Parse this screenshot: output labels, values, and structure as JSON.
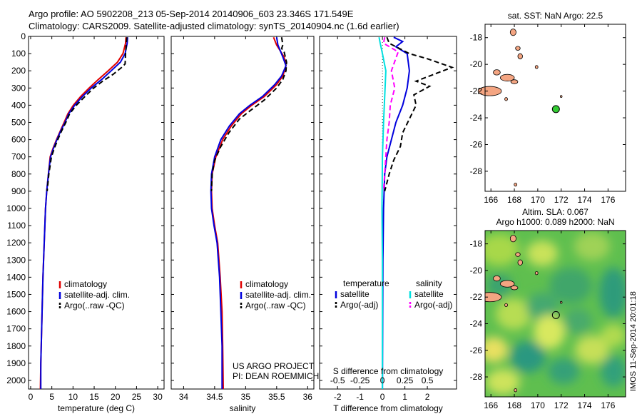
{
  "header": {
    "line1": "Argo profile: AO 5902208_213 05-Sep-2014 20140906_603 23.346S 171.549E",
    "line2": "Climatology: CARS2009. Satellite-adjusted climatology: synTS_20140904.nc (1.6d earlier)"
  },
  "credit": {
    "line1": "US ARGO PROJECT",
    "line2": "PI: DEAN ROEMMICH"
  },
  "side_label": "IMOS 11-Sep-2014 20:01:18",
  "colors": {
    "climatology": "#e00000",
    "satellite": "#0000dd",
    "argo": "#000000",
    "sal_satellite": "#00e0e0",
    "sal_argo": "#ff00ff",
    "float": "#33cc33",
    "land": "#f4a582"
  },
  "chart_data": [
    {
      "id": "temperature",
      "type": "line",
      "xlabel": "temperature (deg C)",
      "xlim": [
        -0.5,
        31.5
      ],
      "ylim": [
        2050,
        0
      ],
      "xticks": [
        0,
        5,
        10,
        15,
        20,
        25,
        30
      ],
      "yticks": [
        0,
        100,
        200,
        300,
        400,
        500,
        600,
        700,
        800,
        900,
        1000,
        1100,
        1200,
        1300,
        1400,
        1500,
        1600,
        1700,
        1800,
        1900,
        2000
      ],
      "legend": [
        "climatology",
        "satellite-adj. clim.",
        "Argo(..raw -QC)"
      ],
      "series": [
        {
          "name": "climatology",
          "style": "climatology",
          "points": [
            [
              22.5,
              5
            ],
            [
              22.4,
              40
            ],
            [
              21.8,
              100
            ],
            [
              20.5,
              150
            ],
            [
              18.3,
              200
            ],
            [
              16,
              250
            ],
            [
              13.8,
              300
            ],
            [
              11.8,
              350
            ],
            [
              10.1,
              400
            ],
            [
              8.8,
              450
            ],
            [
              7.9,
              500
            ],
            [
              7.0,
              550
            ],
            [
              6.1,
              600
            ],
            [
              5.3,
              650
            ],
            [
              4.6,
              700
            ],
            [
              4.2,
              800
            ],
            [
              3.8,
              900
            ],
            [
              3.5,
              1000
            ],
            [
              3.2,
              1200
            ],
            [
              2.9,
              1400
            ],
            [
              2.7,
              1600
            ],
            [
              2.5,
              1800
            ],
            [
              2.4,
              1900
            ],
            [
              2.3,
              2050
            ]
          ]
        },
        {
          "name": "satellite-adj. clim.",
          "style": "satellite",
          "points": [
            [
              22.9,
              5
            ],
            [
              22.8,
              40
            ],
            [
              22.3,
              100
            ],
            [
              21.2,
              150
            ],
            [
              19,
              200
            ],
            [
              16.8,
              250
            ],
            [
              14.3,
              300
            ],
            [
              12.2,
              350
            ],
            [
              10.4,
              400
            ],
            [
              9.0,
              450
            ],
            [
              8.1,
              500
            ],
            [
              7.1,
              550
            ],
            [
              6.2,
              600
            ],
            [
              5.4,
              650
            ],
            [
              4.7,
              700
            ],
            [
              4.2,
              800
            ],
            [
              3.8,
              900
            ],
            [
              3.5,
              1000
            ],
            [
              3.2,
              1200
            ],
            [
              2.9,
              1400
            ],
            [
              2.7,
              1600
            ],
            [
              2.5,
              1800
            ],
            [
              2.4,
              1900
            ],
            [
              2.4,
              2050
            ]
          ]
        },
        {
          "name": "Argo(..raw -QC)",
          "style": "argo",
          "dashed": true,
          "points": [
            [
              22.7,
              5
            ],
            [
              22.6,
              40
            ],
            [
              22.4,
              100
            ],
            [
              22.3,
              160
            ],
            [
              21.5,
              180
            ],
            [
              19.5,
              220
            ],
            [
              17.0,
              260
            ],
            [
              14.9,
              300
            ],
            [
              12.8,
              350
            ],
            [
              10.8,
              400
            ],
            [
              9.2,
              450
            ],
            [
              8.3,
              500
            ],
            [
              7.3,
              550
            ],
            [
              6.4,
              600
            ],
            [
              5.6,
              650
            ],
            [
              4.9,
              700
            ],
            [
              4.3,
              800
            ],
            [
              3.9,
              900
            ]
          ]
        }
      ]
    },
    {
      "id": "salinity",
      "type": "line",
      "xlabel": "salinity",
      "xlim": [
        33.8,
        36.1
      ],
      "ylim": [
        2050,
        0
      ],
      "xticks": [
        34,
        34.5,
        35,
        35.5,
        36
      ],
      "legend": [
        "climatology",
        "satellite-adj. clim.",
        "Argo(..raw -QC)"
      ],
      "series": [
        {
          "name": "climatology",
          "style": "climatology",
          "points": [
            [
              35.45,
              5
            ],
            [
              35.5,
              50
            ],
            [
              35.62,
              120
            ],
            [
              35.65,
              170
            ],
            [
              35.6,
              230
            ],
            [
              35.5,
              280
            ],
            [
              35.3,
              350
            ],
            [
              35.1,
              400
            ],
            [
              34.93,
              450
            ],
            [
              34.77,
              520
            ],
            [
              34.63,
              600
            ],
            [
              34.52,
              700
            ],
            [
              34.46,
              800
            ],
            [
              34.45,
              900
            ],
            [
              34.46,
              1000
            ],
            [
              34.5,
              1100
            ],
            [
              34.55,
              1200
            ],
            [
              34.59,
              1400
            ],
            [
              34.62,
              1600
            ],
            [
              34.63,
              1800
            ],
            [
              34.64,
              2050
            ]
          ]
        },
        {
          "name": "satellite-adj. clim.",
          "style": "satellite",
          "points": [
            [
              35.5,
              5
            ],
            [
              35.52,
              50
            ],
            [
              35.6,
              120
            ],
            [
              35.65,
              170
            ],
            [
              35.58,
              230
            ],
            [
              35.47,
              280
            ],
            [
              35.27,
              350
            ],
            [
              35.07,
              400
            ],
            [
              34.9,
              450
            ],
            [
              34.74,
              520
            ],
            [
              34.6,
              600
            ],
            [
              34.5,
              700
            ],
            [
              34.45,
              800
            ],
            [
              34.44,
              900
            ],
            [
              34.45,
              1000
            ],
            [
              34.49,
              1100
            ],
            [
              34.54,
              1200
            ],
            [
              34.58,
              1400
            ],
            [
              34.6,
              1600
            ],
            [
              34.62,
              1800
            ],
            [
              34.62,
              2050
            ]
          ]
        },
        {
          "name": "Argo(..raw -QC)",
          "style": "argo",
          "dashed": true,
          "points": [
            [
              35.58,
              5
            ],
            [
              35.6,
              50
            ],
            [
              35.58,
              70
            ],
            [
              35.62,
              90
            ],
            [
              35.66,
              150
            ],
            [
              35.65,
              200
            ],
            [
              35.6,
              250
            ],
            [
              35.5,
              300
            ],
            [
              35.3,
              370
            ],
            [
              35.08,
              430
            ],
            [
              34.9,
              480
            ],
            [
              34.73,
              560
            ],
            [
              34.6,
              640
            ],
            [
              34.5,
              720
            ],
            [
              34.46,
              800
            ],
            [
              34.45,
              900
            ]
          ]
        }
      ]
    },
    {
      "id": "differences",
      "type": "line",
      "xlabel": "T difference from climatology",
      "xlabel_top": "S difference from climatology",
      "xlim": [
        -2.8,
        3.3
      ],
      "ylim": [
        2050,
        0
      ],
      "xticks": [
        -2,
        -1,
        0,
        1,
        2
      ],
      "xticks_top": [
        "-0.5",
        "-0.25",
        "0",
        "0.25",
        "0.5"
      ],
      "legend_headings": [
        "temperature",
        "salinity"
      ],
      "legend": [
        "satellite",
        "Argo(-adj)",
        "satellite",
        "Argo(-adj)"
      ],
      "series": [
        {
          "name": "satellite",
          "group": "temperature",
          "style": "satellite",
          "points": [
            [
              0.5,
              5
            ],
            [
              0.9,
              30
            ],
            [
              0.6,
              60
            ],
            [
              1.1,
              100
            ],
            [
              1.2,
              200
            ],
            [
              1.1,
              300
            ],
            [
              0.9,
              400
            ],
            [
              0.6,
              500
            ],
            [
              0.4,
              600
            ],
            [
              0.2,
              700
            ],
            [
              0.1,
              800
            ],
            [
              0.05,
              1000
            ],
            [
              0.02,
              1300
            ],
            [
              0.0,
              2050
            ]
          ]
        },
        {
          "name": "Argo(-adj)",
          "group": "temperature",
          "style": "argo",
          "dashed": true,
          "points": [
            [
              0.2,
              5
            ],
            [
              0.3,
              40
            ],
            [
              1.2,
              100
            ],
            [
              2.0,
              130
            ],
            [
              3.1,
              180
            ],
            [
              1.5,
              260
            ],
            [
              2.1,
              290
            ],
            [
              1.4,
              340
            ],
            [
              1.5,
              400
            ],
            [
              1.2,
              480
            ],
            [
              0.9,
              560
            ],
            [
              0.8,
              640
            ],
            [
              0.5,
              720
            ],
            [
              0.3,
              800
            ],
            [
              0.1,
              900
            ]
          ]
        },
        {
          "name": "satellite",
          "group": "salinity",
          "style": "sal_satellite",
          "points": [
            [
              -0.15,
              5
            ],
            [
              -0.1,
              40
            ],
            [
              0.0,
              100
            ],
            [
              0.15,
              200
            ],
            [
              0.1,
              350
            ],
            [
              0.05,
              500
            ],
            [
              0.0,
              700
            ],
            [
              -0.02,
              1000
            ],
            [
              0.0,
              1300
            ],
            [
              0.0,
              2050
            ]
          ]
        },
        {
          "name": "Argo(-adj)",
          "group": "salinity",
          "style": "sal_argo",
          "dashed": true,
          "points": [
            [
              0.1,
              5
            ],
            [
              0.05,
              40
            ],
            [
              0.7,
              90
            ],
            [
              0.4,
              200
            ],
            [
              0.55,
              300
            ],
            [
              0.35,
              400
            ],
            [
              0.3,
              500
            ],
            [
              0.2,
              600
            ],
            [
              0.1,
              800
            ],
            [
              0.05,
              900
            ]
          ]
        }
      ]
    },
    {
      "id": "sst_map",
      "type": "scatter",
      "title": "sat. SST: NaN Argo: 22.5",
      "xlim": [
        165.5,
        177.5
      ],
      "ylim": [
        -29.5,
        -17
      ],
      "xticks": [
        166,
        168,
        170,
        172,
        174,
        176
      ],
      "yticks": [
        -18,
        -20,
        -22,
        -24,
        -26,
        -28
      ],
      "float": [
        171.55,
        -23.35
      ]
    },
    {
      "id": "sla_map",
      "type": "heatmap",
      "title_line1": "Altim. SLA: 0.067",
      "title_line2": "Argo h1000: 0.089 h2000: NaN",
      "xlim": [
        165.5,
        177.5
      ],
      "ylim": [
        -29.5,
        -17
      ],
      "xticks": [
        166,
        168,
        170,
        172,
        174,
        176
      ],
      "yticks": [
        -18,
        -20,
        -22,
        -24,
        -26,
        -28
      ],
      "float": [
        171.55,
        -23.35
      ]
    }
  ]
}
